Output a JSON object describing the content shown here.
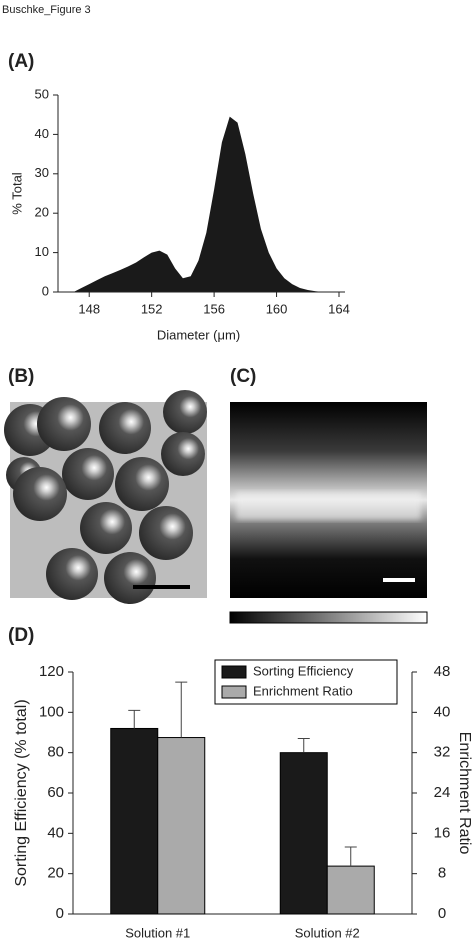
{
  "header": "Buschke_Figure 3",
  "panel_labels": [
    "(A)",
    "(B)",
    "(C)",
    "(D)"
  ],
  "chart_data": [
    {
      "type": "area",
      "ylabel": "% Total",
      "xlabel": "Diameter (μm)",
      "color": "#1a1a1a",
      "x": [
        147,
        147.5,
        148,
        148.5,
        149,
        149.5,
        150,
        150.5,
        151,
        151.5,
        152,
        152.5,
        153,
        153.5,
        154,
        154.5,
        155,
        155.5,
        156,
        156.5,
        157,
        157.5,
        158,
        158.5,
        159,
        159.5,
        160,
        160.5,
        161,
        161.5,
        162,
        162.5,
        163
      ],
      "values": [
        0,
        1,
        2,
        3,
        4,
        4.8,
        5.6,
        6.5,
        7.5,
        8.8,
        10,
        10.5,
        9.5,
        6,
        3.5,
        4,
        8,
        15,
        26,
        38,
        44.5,
        43,
        35,
        25,
        16,
        10,
        6,
        3.5,
        2,
        1,
        0.5,
        0.2,
        0
      ],
      "xlim": [
        146,
        164
      ],
      "xticks": [
        148,
        152,
        156,
        160,
        164
      ],
      "ylim": [
        0,
        50
      ],
      "yticks": [
        0,
        10,
        20,
        30,
        40,
        50
      ]
    },
    {
      "type": "bar",
      "ylabel": "Sorting Efficiency (% total)",
      "y2label": "Enrichment Ratio",
      "categories": [
        "Solution #1",
        "Solution #2"
      ],
      "series": [
        {
          "name": "Sorting Efficiency",
          "color": "#1a1a1a",
          "values": [
            92,
            80
          ],
          "errors": [
            9,
            7
          ]
        },
        {
          "name": "Enrichment Ratio",
          "color": "#aaaaaa",
          "axis": "y2",
          "values": [
            35,
            9.5
          ],
          "errors": [
            11,
            3.8
          ]
        }
      ],
      "ylim": [
        0,
        120
      ],
      "yticks": [
        0,
        20,
        40,
        60,
        80,
        100,
        120
      ],
      "y2lim": [
        0,
        48
      ],
      "y2ticks": [
        0,
        8,
        16,
        24,
        32,
        40,
        48
      ],
      "legend": "top-right"
    }
  ]
}
